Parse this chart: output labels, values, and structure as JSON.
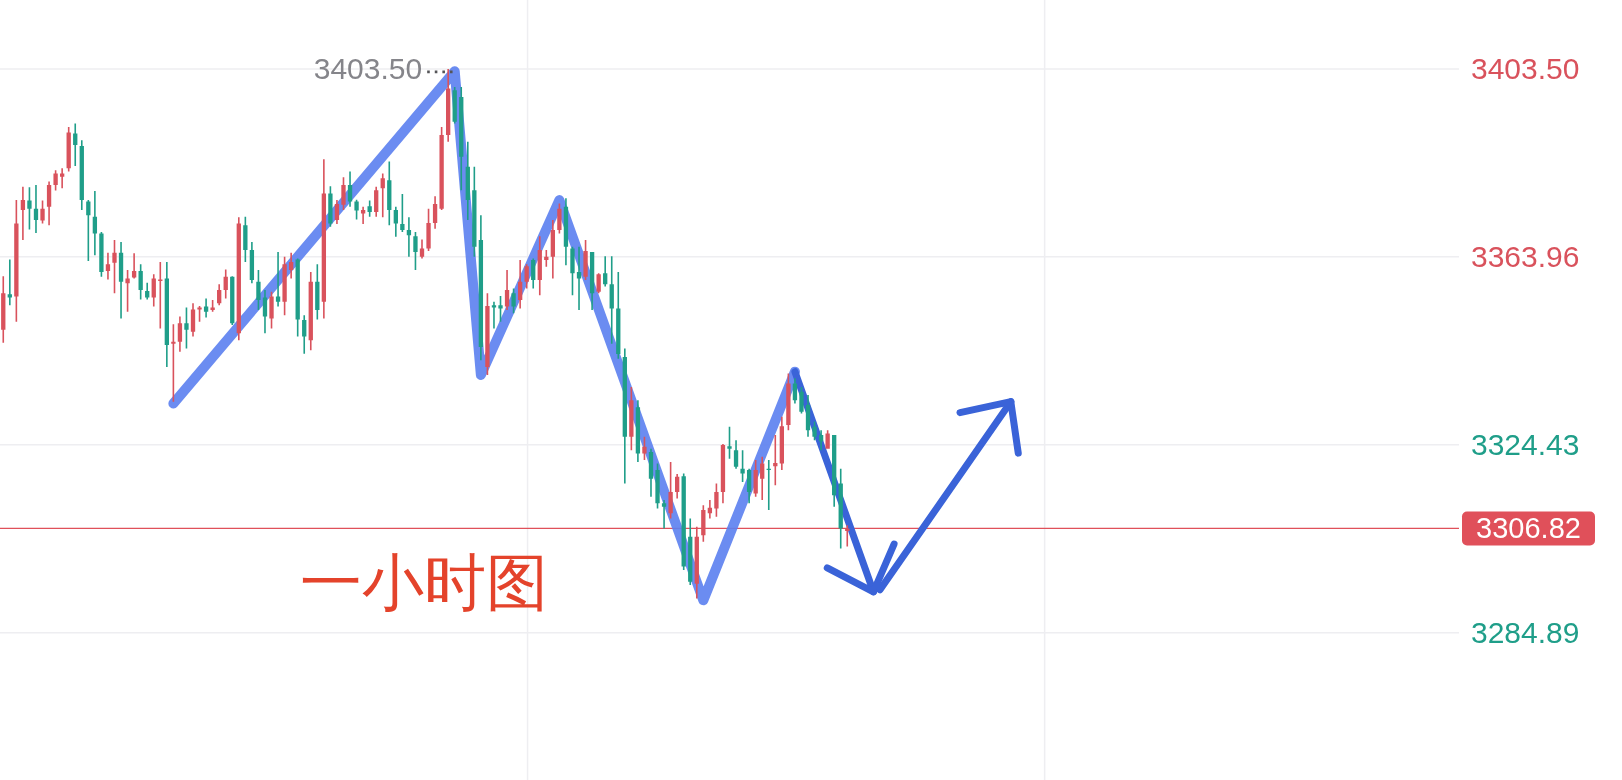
{
  "chart_data": {
    "type": "candlestick",
    "title": "一小时图",
    "categories": [
      null,
      null,
      null,
      null,
      null,
      null,
      null,
      null,
      null,
      null,
      null,
      null,
      null,
      null,
      null,
      null,
      null,
      null,
      null,
      null,
      null,
      null,
      null,
      null,
      null,
      null,
      null,
      null,
      null,
      null,
      null,
      null,
      null,
      null,
      null,
      null,
      null,
      null,
      null,
      null,
      null,
      null,
      null,
      null,
      null,
      null,
      null,
      null,
      null,
      null,
      null,
      null,
      null,
      null,
      null,
      null,
      null,
      null,
      null,
      null,
      null,
      null,
      null,
      null,
      null,
      null,
      null,
      null,
      null,
      null,
      null,
      null,
      null,
      null,
      null,
      null,
      null,
      null,
      null,
      null,
      null,
      null,
      null,
      null,
      null,
      null,
      null,
      null,
      null,
      null,
      null,
      null,
      null,
      null,
      null,
      null,
      null,
      null,
      null,
      null,
      null,
      null,
      null,
      null,
      null,
      null,
      null,
      null,
      null,
      null,
      null,
      null,
      null,
      null,
      null,
      null,
      null,
      null,
      null,
      null,
      null,
      null,
      null,
      null,
      null,
      null,
      null,
      null,
      null,
      null,
      null,
      null,
      null,
      null,
      null,
      null,
      null,
      null,
      null,
      null,
      null,
      null,
      null,
      null,
      null,
      null,
      null,
      null,
      null,
      null,
      null,
      null,
      null,
      null,
      null,
      null,
      null,
      null,
      null,
      null,
      null,
      null,
      null,
      null,
      null,
      null,
      null,
      null,
      null,
      null,
      null,
      null,
      null,
      null,
      null,
      null,
      null,
      null,
      null,
      null,
      null,
      null,
      null,
      null,
      null,
      null,
      null,
      null,
      null,
      null,
      null,
      null,
      null,
      null,
      null,
      null,
      null,
      null,
      null,
      null,
      null,
      null,
      null,
      null,
      null,
      null,
      null,
      null,
      null,
      null,
      null,
      null,
      null,
      null,
      null,
      null,
      null,
      null,
      null,
      null,
      null,
      null,
      null
    ],
    "ohlc": [
      [
        3348.6,
        3359.9,
        3345.9,
        3356.3
      ],
      [
        3356.1,
        3363.4,
        3353.8,
        3355.4
      ],
      [
        3355.6,
        3375.9,
        3350.3,
        3371.0
      ],
      [
        3373.8,
        3378.7,
        3367.5,
        3375.9
      ],
      [
        3375.8,
        3378.6,
        3369.7,
        3374.1
      ],
      [
        3374.1,
        3379.1,
        3369.0,
        3371.7
      ],
      [
        3371.6,
        3375.8,
        3371.0,
        3374.1
      ],
      [
        3374.5,
        3379.8,
        3370.6,
        3379.1
      ],
      [
        3379.1,
        3382.2,
        3377.9,
        3381.5
      ],
      [
        3380.8,
        3382.6,
        3378.4,
        3381.5
      ],
      [
        3382.6,
        3391.3,
        3381.9,
        3390.1
      ],
      [
        3389.9,
        3392.0,
        3383.1,
        3387.5
      ],
      [
        3387.3,
        3388.5,
        3373.8,
        3375.9
      ],
      [
        3375.6,
        3375.9,
        3363.1,
        3372.7
      ],
      [
        3372.4,
        3377.8,
        3364.3,
        3368.9
      ],
      [
        3368.9,
        3369.2,
        3359.8,
        3360.8
      ],
      [
        3361.0,
        3364.8,
        3359.2,
        3362.4
      ],
      [
        3362.7,
        3367.5,
        3356.3,
        3364.8
      ],
      [
        3364.8,
        3367.1,
        3351.0,
        3358.7
      ],
      [
        3358.4,
        3361.2,
        3352.4,
        3359.4
      ],
      [
        3359.6,
        3364.7,
        3359.4,
        3361.0
      ],
      [
        3361.0,
        3362.4,
        3355.0,
        3357.0
      ],
      [
        3356.8,
        3358.5,
        3355.0,
        3355.4
      ],
      [
        3355.4,
        3360.3,
        3353.5,
        3359.4
      ],
      [
        3358.9,
        3362.9,
        3348.9,
        3359.2
      ],
      [
        3359.4,
        3362.9,
        3340.8,
        3345.4
      ],
      [
        3345.7,
        3349.8,
        3333.5,
        3346.1
      ],
      [
        3346.1,
        3351.4,
        3344.0,
        3350.0
      ],
      [
        3350.0,
        3353.3,
        3344.7,
        3348.6
      ],
      [
        3348.2,
        3354.2,
        3347.2,
        3352.9
      ],
      [
        3352.9,
        3353.6,
        3350.3,
        3353.3
      ],
      [
        3353.5,
        3355.2,
        3351.2,
        3352.4
      ],
      [
        3352.8,
        3354.9,
        3352.4,
        3353.3
      ],
      [
        3354.2,
        3358.2,
        3353.8,
        3357.0
      ],
      [
        3357.0,
        3361.3,
        3355.2,
        3359.8
      ],
      [
        3359.8,
        3359.9,
        3349.6,
        3350.0
      ],
      [
        3347.9,
        3372.3,
        3346.4,
        3371.0
      ],
      [
        3370.6,
        3372.4,
        3362.9,
        3365.4
      ],
      [
        3365.4,
        3367.1,
        3358.4,
        3359.1
      ],
      [
        3358.7,
        3361.2,
        3352.8,
        3354.9
      ],
      [
        3355.4,
        3357.0,
        3347.9,
        3351.4
      ],
      [
        3351.0,
        3356.6,
        3348.9,
        3355.6
      ],
      [
        3355.6,
        3365.0,
        3353.5,
        3354.5
      ],
      [
        3354.5,
        3364.0,
        3351.7,
        3362.4
      ],
      [
        3361.2,
        3364.8,
        3359.4,
        3362.9
      ],
      [
        3363.4,
        3363.6,
        3347.2,
        3350.8
      ],
      [
        3350.7,
        3351.7,
        3343.6,
        3347.2
      ],
      [
        3346.4,
        3360.8,
        3344.3,
        3358.7
      ],
      [
        3358.7,
        3362.4,
        3350.8,
        3352.8
      ],
      [
        3354.5,
        3384.5,
        3351.0,
        3377.3
      ],
      [
        3377.3,
        3378.8,
        3370.3,
        3371.0
      ],
      [
        3371.7,
        3375.9,
        3370.9,
        3375.1
      ],
      [
        3374.9,
        3380.7,
        3373.8,
        3379.1
      ],
      [
        3379.1,
        3381.9,
        3374.5,
        3375.6
      ],
      [
        3375.6,
        3376.0,
        3371.8,
        3373.7
      ],
      [
        3373.1,
        3374.5,
        3370.9,
        3373.8
      ],
      [
        3374.6,
        3375.8,
        3372.4,
        3373.4
      ],
      [
        3373.4,
        3378.7,
        3372.4,
        3378.0
      ],
      [
        3378.4,
        3381.5,
        3372.3,
        3380.5
      ],
      [
        3380.1,
        3384.0,
        3370.6,
        3373.8
      ],
      [
        3373.8,
        3374.5,
        3368.2,
        3371.0
      ],
      [
        3370.9,
        3377.2,
        3369.2,
        3369.6
      ],
      [
        3369.6,
        3372.3,
        3364.0,
        3368.5
      ],
      [
        3368.3,
        3369.2,
        3361.2,
        3365.0
      ],
      [
        3364.0,
        3367.6,
        3363.6,
        3365.7
      ],
      [
        3365.7,
        3374.1,
        3365.2,
        3371.1
      ],
      [
        3371.1,
        3376.7,
        3369.9,
        3375.1
      ],
      [
        3374.1,
        3391.3,
        3373.8,
        3389.6
      ],
      [
        3389.6,
        3403.5,
        3388.2,
        3399.4
      ],
      [
        3399.0,
        3399.7,
        3392.0,
        3392.4
      ],
      [
        3397.6,
        3399.7,
        3378.0,
        3385.0
      ],
      [
        3382.9,
        3388.2,
        3371.7,
        3375.9
      ],
      [
        3378.0,
        3382.9,
        3364.0,
        3366.1
      ],
      [
        3367.5,
        3372.7,
        3342.2,
        3345.0
      ],
      [
        3340.8,
        3356.3,
        3339.1,
        3353.6
      ],
      [
        3353.8,
        3354.5,
        3348.9,
        3353.3
      ],
      [
        3353.8,
        3355.7,
        3350.3,
        3353.1
      ],
      [
        3353.5,
        3361.2,
        3352.8,
        3357.0
      ],
      [
        3356.3,
        3357.3,
        3352.1,
        3353.5
      ],
      [
        3354.9,
        3363.3,
        3353.1,
        3358.7
      ],
      [
        3358.7,
        3362.4,
        3357.3,
        3362.0
      ],
      [
        3363.3,
        3363.6,
        3357.3,
        3359.1
      ],
      [
        3359.1,
        3368.3,
        3355.9,
        3365.4
      ],
      [
        3363.3,
        3365.4,
        3361.9,
        3364.0
      ],
      [
        3364.0,
        3371.7,
        3359.4,
        3369.6
      ],
      [
        3369.6,
        3375.2,
        3368.9,
        3374.1
      ],
      [
        3374.5,
        3376.3,
        3362.2,
        3366.1
      ],
      [
        3365.7,
        3366.1,
        3355.9,
        3360.5
      ],
      [
        3360.8,
        3366.1,
        3352.8,
        3359.4
      ],
      [
        3359.8,
        3367.5,
        3359.1,
        3365.2
      ],
      [
        3365.0,
        3365.0,
        3352.8,
        3356.3
      ],
      [
        3356.6,
        3360.5,
        3356.3,
        3360.3
      ],
      [
        3360.5,
        3364.1,
        3357.7,
        3358.2
      ],
      [
        3358.2,
        3364.1,
        3345.7,
        3353.1
      ],
      [
        3353.1,
        3360.8,
        3342.5,
        3343.5
      ],
      [
        3342.9,
        3344.7,
        3316.3,
        3326.1
      ],
      [
        3326.1,
        3336.6,
        3323.3,
        3333.8
      ],
      [
        3332.3,
        3333.8,
        3320.8,
        3322.6
      ],
      [
        3322.6,
        3326.1,
        3321.2,
        3324.0
      ],
      [
        3322.9,
        3323.6,
        3313.5,
        3317.3
      ],
      [
        3319.1,
        3320.5,
        3311.0,
        3312.1
      ],
      [
        3312.1,
        3312.8,
        3306.8,
        3311.4
      ],
      [
        3310.0,
        3320.8,
        3308.9,
        3314.5
      ],
      [
        3314.5,
        3318.3,
        3313.1,
        3317.7
      ],
      [
        3317.8,
        3318.4,
        3298.1,
        3298.8
      ],
      [
        3305.1,
        3308.9,
        3294.9,
        3295.6
      ],
      [
        3295.2,
        3307.2,
        3292.1,
        3305.1
      ],
      [
        3305.4,
        3311.7,
        3304.0,
        3310.7
      ],
      [
        3310.0,
        3312.8,
        3308.9,
        3311.2
      ],
      [
        3311.0,
        3316.3,
        3309.3,
        3314.5
      ],
      [
        3314.5,
        3324.6,
        3312.1,
        3324.4
      ],
      [
        3324.1,
        3328.2,
        3321.5,
        3323.6
      ],
      [
        3323.3,
        3325.4,
        3319.4,
        3319.8
      ],
      [
        3319.4,
        3323.3,
        3316.6,
        3318.4
      ],
      [
        3319.1,
        3319.4,
        3312.1,
        3314.5
      ],
      [
        3314.2,
        3321.2,
        3313.5,
        3319.1
      ],
      [
        3317.3,
        3321.9,
        3312.8,
        3320.5
      ],
      [
        3319.4,
        3321.2,
        3310.7,
        3319.1
      ],
      [
        3319.9,
        3326.5,
        3315.9,
        3320.6
      ],
      [
        3320.5,
        3330.3,
        3319.1,
        3328.3
      ],
      [
        3328.6,
        3339.4,
        3327.5,
        3337.3
      ],
      [
        3337.3,
        3338.4,
        3333.1,
        3333.8
      ],
      [
        3335.6,
        3336.6,
        3331.0,
        3331.4
      ],
      [
        3332.8,
        3334.9,
        3326.1,
        3327.5
      ],
      [
        3328.2,
        3329.3,
        3325.4,
        3326.1
      ],
      [
        3326.5,
        3327.5,
        3323.3,
        3325.1
      ],
      [
        3323.6,
        3327.5,
        3323.6,
        3326.8
      ],
      [
        3326.5,
        3326.5,
        3311.4,
        3313.8
      ],
      [
        3316.3,
        3319.4,
        3302.6,
        3306.8
      ],
      [
        3306.3,
        3307.5,
        3303.0,
        3306.82
      ],
      null,
      null,
      null,
      null,
      null,
      null,
      null,
      null,
      null,
      null,
      null,
      null,
      null,
      null,
      null,
      null,
      null,
      null,
      null,
      null,
      null,
      null,
      null,
      null,
      null,
      null,
      null,
      null,
      null,
      null,
      null,
      null,
      null,
      null,
      null,
      null,
      null,
      null,
      null,
      null,
      null,
      null,
      null,
      null,
      null,
      null,
      null,
      null,
      null,
      null,
      null,
      null,
      null,
      null,
      null,
      null,
      null,
      null,
      null,
      null,
      null,
      null,
      null,
      null,
      null,
      null,
      null,
      null,
      null,
      null,
      null,
      null,
      null,
      null,
      null,
      null,
      null,
      null,
      null,
      null,
      null,
      null,
      null,
      null,
      null,
      null,
      null,
      null,
      null,
      null,
      null,
      null,
      null
    ],
    "colors": [
      "#d9525c",
      "#1f9e89",
      "#d9525c",
      "#d9525c",
      "#1f9e89",
      "#1f9e89",
      "#d9525c",
      "#d9525c",
      "#d9525c",
      "#d9525c",
      "#d9525c",
      "#1f9e89",
      "#1f9e89",
      "#1f9e89",
      "#1f9e89",
      "#1f9e89",
      "#d9525c",
      "#d9525c",
      "#1f9e89",
      "#d9525c",
      "#d9525c",
      "#1f9e89",
      "#1f9e89",
      "#d9525c",
      "#d9525c",
      "#1f9e89",
      "#d9525c",
      "#d9525c",
      "#1f9e89",
      "#d9525c",
      "#d9525c",
      "#1f9e89",
      "#d9525c",
      "#d9525c",
      "#d9525c",
      "#1f9e89",
      "#d9525c",
      "#1f9e89",
      "#1f9e89",
      "#1f9e89",
      "#1f9e89",
      "#d9525c",
      "#1f9e89",
      "#d9525c",
      "#d9525c",
      "#1f9e89",
      "#1f9e89",
      "#d9525c",
      "#1f9e89",
      "#d9525c",
      "#1f9e89",
      "#d9525c",
      "#d9525c",
      "#1f9e89",
      "#1f9e89",
      "#d9525c",
      "#1f9e89",
      "#d9525c",
      "#d9525c",
      "#1f9e89",
      "#1f9e89",
      "#1f9e89",
      "#1f9e89",
      "#1f9e89",
      "#d9525c",
      "#d9525c",
      "#d9525c",
      "#d9525c",
      "#d9525c",
      "#1f9e89",
      "#1f9e89",
      "#1f9e89",
      "#1f9e89",
      "#1f9e89",
      "#d9525c",
      "#1f9e89",
      "#1f9e89",
      "#d9525c",
      "#1f9e89",
      "#d9525c",
      "#d9525c",
      "#1f9e89",
      "#d9525c",
      "#d9525c",
      "#d9525c",
      "#d9525c",
      "#1f9e89",
      "#1f9e89",
      "#1f9e89",
      "#d9525c",
      "#1f9e89",
      "#d9525c",
      "#1f9e89",
      "#1f9e89",
      "#1f9e89",
      "#1f9e89",
      "#d9525c",
      "#1f9e89",
      "#d9525c",
      "#1f9e89",
      "#1f9e89",
      "#1f9e89",
      "#d9525c",
      "#d9525c",
      "#1f9e89",
      "#1f9e89",
      "#d9525c",
      "#d9525c",
      "#d9525c",
      "#d9525c",
      "#d9525c",
      "#1f9e89",
      "#1f9e89",
      "#1f9e89",
      "#1f9e89",
      "#d9525c",
      "#d9525c",
      "#1f9e89",
      "#d9525c",
      "#d9525c",
      "#d9525c",
      "#1f9e89",
      "#1f9e89",
      "#1f9e89",
      "#1f9e89",
      "#1f9e89",
      "#d9525c",
      "#1f9e89",
      "#1f9e89",
      "#d9525c",
      null,
      null,
      null,
      null,
      null,
      null,
      null,
      null,
      null,
      null,
      null,
      null,
      null,
      null,
      null,
      null,
      null,
      null,
      null,
      null,
      null,
      null,
      null,
      null,
      null,
      null,
      null,
      null,
      null,
      null,
      null,
      null,
      null,
      null,
      null,
      null,
      null,
      null,
      null,
      null,
      null,
      null,
      null,
      null,
      null,
      null,
      null,
      null,
      null,
      null,
      null,
      null,
      null,
      null,
      null,
      null,
      null,
      null,
      null,
      null,
      null,
      null,
      null,
      null,
      null,
      null,
      null,
      null,
      null,
      null,
      null,
      null,
      null,
      null,
      null,
      null,
      null,
      null,
      null,
      null,
      null,
      null,
      null,
      null,
      null,
      null,
      null,
      null,
      null,
      null,
      null,
      null,
      null
    ],
    "series": [
      {
        "type": "line",
        "color": "#5b7ff0",
        "values": [
          null,
          null,
          null,
          null,
          null,
          null,
          null,
          null,
          null,
          null,
          null,
          null,
          null,
          null,
          null,
          null,
          null,
          null,
          null,
          null,
          null,
          null,
          null,
          null,
          null,
          null,
          3333.1,
          null,
          null,
          null,
          null,
          null,
          null,
          null,
          null,
          null,
          null,
          null,
          null,
          null,
          null,
          null,
          null,
          null,
          null,
          null,
          null,
          null,
          null,
          null,
          null,
          null,
          null,
          null,
          null,
          null,
          null,
          null,
          null,
          null,
          null,
          null,
          null,
          null,
          null,
          null,
          null,
          null,
          null,
          3403.0,
          null,
          null,
          null,
          3339.1,
          null,
          null,
          null,
          null,
          null,
          null,
          null,
          null,
          null,
          null,
          null,
          3375.9,
          null,
          null,
          null,
          null,
          null,
          null,
          null,
          null,
          null,
          null,
          null,
          null,
          null,
          null,
          null,
          null,
          null,
          null,
          null,
          null,
          null,
          3291.7,
          null,
          null,
          null,
          null,
          null,
          null,
          null,
          null,
          null,
          null,
          null,
          null,
          null,
          3339.8,
          null,
          null,
          null,
          null,
          null,
          null,
          null,
          null,
          null,
          null,
          null,
          null,
          null,
          null,
          null,
          null,
          null,
          null,
          null,
          null,
          null,
          null,
          null,
          null,
          null,
          null,
          null,
          null,
          null,
          null,
          null,
          null,
          null,
          null,
          null,
          null,
          null,
          null,
          null,
          null,
          null,
          null,
          null,
          null,
          null,
          null,
          null,
          null,
          null,
          null,
          null,
          null,
          null,
          null,
          null,
          null,
          null,
          null,
          null,
          null,
          null,
          null,
          null,
          null,
          null,
          null,
          null,
          null,
          null,
          null,
          null,
          null,
          null,
          null,
          null,
          null,
          null,
          null,
          null,
          null,
          null,
          null,
          null,
          null,
          null,
          null,
          null,
          null,
          null,
          null,
          null,
          null,
          null,
          null,
          null,
          null,
          null,
          null,
          null,
          null,
          null
        ]
      },
      {
        "type": "line",
        "color": "#3a63d8",
        "values": [
          null,
          null,
          null,
          null,
          null,
          null,
          null,
          null,
          null,
          null,
          null,
          null,
          null,
          null,
          null,
          null,
          null,
          null,
          null,
          null,
          null,
          null,
          null,
          null,
          null,
          null,
          null,
          null,
          null,
          null,
          null,
          null,
          null,
          null,
          null,
          null,
          null,
          null,
          null,
          null,
          null,
          null,
          null,
          null,
          null,
          null,
          null,
          null,
          null,
          null,
          null,
          null,
          null,
          null,
          null,
          null,
          null,
          null,
          null,
          null,
          null,
          null,
          null,
          null,
          null,
          null,
          null,
          null,
          null,
          null,
          null,
          null,
          null,
          null,
          null,
          null,
          null,
          null,
          null,
          null,
          null,
          null,
          null,
          null,
          null,
          null,
          null,
          null,
          null,
          null,
          null,
          null,
          null,
          null,
          null,
          null,
          null,
          null,
          null,
          null,
          null,
          null,
          null,
          null,
          null,
          null,
          null,
          null,
          null,
          null,
          null,
          null,
          null,
          null,
          null,
          null,
          null,
          null,
          null,
          null,
          null,
          3339.8,
          null,
          null,
          null,
          null,
          null,
          null,
          null,
          null,
          null,
          null,
          null,
          3293.5,
          null,
          null,
          null,
          null,
          null,
          null,
          null,
          null,
          null,
          null,
          null,
          null,
          null,
          null,
          null,
          null,
          null,
          null,
          null,
          null,
          null,
          null,
          null,
          null,
          null,
          null,
          null,
          null,
          null,
          null,
          null,
          null,
          null,
          null,
          null,
          null,
          null,
          null,
          null,
          null,
          null,
          null,
          null,
          null,
          null,
          null,
          null,
          null,
          null,
          null,
          null,
          null,
          null,
          null,
          null,
          null,
          null,
          null,
          null,
          null,
          null,
          null,
          null,
          null,
          null,
          null,
          null,
          null,
          null,
          null,
          null,
          null,
          null,
          null,
          null,
          null,
          null,
          null,
          null,
          null,
          null,
          null,
          null,
          null,
          null,
          null,
          null,
          null,
          null
        ]
      },
      {
        "type": "line",
        "color": "#3a63d8",
        "values": [
          null,
          null,
          null,
          null,
          null,
          null,
          null,
          null,
          null,
          null,
          null,
          null,
          null,
          null,
          null,
          null,
          null,
          null,
          null,
          null,
          null,
          null,
          null,
          null,
          null,
          null,
          null,
          null,
          null,
          null,
          null,
          null,
          null,
          null,
          null,
          null,
          null,
          null,
          null,
          null,
          null,
          null,
          null,
          null,
          null,
          null,
          null,
          null,
          null,
          null,
          null,
          null,
          null,
          null,
          null,
          null,
          null,
          null,
          null,
          null,
          null,
          null,
          null,
          null,
          null,
          null,
          null,
          null,
          null,
          null,
          null,
          null,
          null,
          null,
          null,
          null,
          null,
          null,
          null,
          null,
          null,
          null,
          null,
          null,
          null,
          null,
          null,
          null,
          null,
          null,
          null,
          null,
          null,
          null,
          null,
          null,
          null,
          null,
          null,
          null,
          null,
          null,
          null,
          null,
          null,
          null,
          null,
          null,
          null,
          null,
          null,
          null,
          null,
          null,
          null,
          null,
          null,
          null,
          null,
          null,
          null,
          null,
          null,
          null,
          null,
          null,
          null,
          null,
          null,
          null,
          null,
          null,
          null,
          null,
          3293.9,
          null,
          null,
          null,
          null,
          null,
          null,
          null,
          null,
          null,
          null,
          null,
          null,
          null,
          null,
          null,
          null,
          null,
          null,
          null,
          3333.5,
          null,
          null,
          null,
          null,
          null,
          null,
          null,
          null,
          null,
          null,
          null,
          null,
          null,
          null,
          null,
          null,
          null,
          null,
          null,
          null,
          null,
          null,
          null,
          null,
          null,
          null,
          null,
          null,
          null,
          null,
          null,
          null,
          null,
          null,
          null,
          null,
          null,
          null,
          null,
          null,
          null,
          null,
          null,
          null,
          null,
          null,
          null,
          null,
          null,
          null,
          null,
          null,
          null,
          null,
          null,
          null,
          null,
          null,
          null,
          null,
          null,
          null,
          null,
          null,
          null,
          null,
          null,
          null
        ]
      }
    ],
    "ylim": [
      3253.9,
      3418.0
    ],
    "yticks": [
      3284.89,
      3324.43,
      3363.96,
      {
        "value": 3403.5,
        "label": "3403.50"
      }
    ],
    "tick_labels": "y",
    "grid": true,
    "ref_lines": [
      {
        "axis": "y",
        "value": 3306.82,
        "label": "3306.82",
        "color": "#e0505a"
      }
    ],
    "annotations": [
      "3403.50"
    ]
  }
}
